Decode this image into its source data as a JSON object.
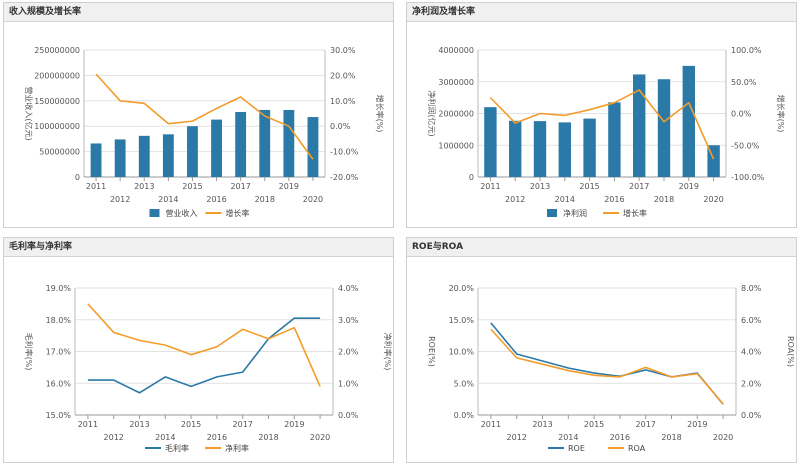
{
  "chart_data": [
    {
      "type": "bar+line",
      "title": "收入规模及增长率",
      "ylabel_left": "营业收入(亿元)",
      "ylabel_right": "增长率(%)",
      "categories": [
        "2011",
        "2012",
        "2013",
        "2014",
        "2015",
        "2016",
        "2017",
        "2018",
        "2019",
        "2020"
      ],
      "left_ticks": [
        "0",
        "50000000",
        "100000000",
        "150000000",
        "200000000",
        "250000000"
      ],
      "left_range": [
        0,
        250000000
      ],
      "right_ticks": [
        "-20.0%",
        "-10.0%",
        "0.0%",
        "10.0%",
        "20.0%",
        "30.0%"
      ],
      "right_range": [
        -20,
        30
      ],
      "series": [
        {
          "name": "营业收入",
          "kind": "bar",
          "axis": "left",
          "color": "#2b79a6",
          "values": [
            66000000,
            74000000,
            81000000,
            84000000,
            100000000,
            113000000,
            128000000,
            132000000,
            132000000,
            118000000
          ]
        },
        {
          "name": "增长率",
          "kind": "line",
          "axis": "right",
          "color": "#f39c2a",
          "values": [
            20.5,
            10.0,
            9.0,
            1.0,
            2.0,
            7.0,
            11.5,
            4.0,
            0.0,
            -13.0
          ]
        }
      ],
      "legend": [
        "营业收入",
        "增长率"
      ]
    },
    {
      "type": "bar+line",
      "title": "净利润及增长率",
      "ylabel_left": "净利润(亿元)",
      "ylabel_right": "增长率(%)",
      "categories": [
        "2011",
        "2012",
        "2013",
        "2014",
        "2015",
        "2016",
        "2017",
        "2018",
        "2019",
        "2020"
      ],
      "left_ticks": [
        "0",
        "1000000",
        "2000000",
        "3000000",
        "4000000"
      ],
      "left_range": [
        0,
        4000000
      ],
      "right_ticks": [
        "-100.0%",
        "-50.0%",
        "0.0%",
        "50.0%",
        "100.0%"
      ],
      "right_range": [
        -100,
        100
      ],
      "series": [
        {
          "name": "净利润",
          "kind": "bar",
          "axis": "left",
          "color": "#2b79a6",
          "values": [
            2200000,
            1770000,
            1760000,
            1720000,
            1840000,
            2350000,
            3230000,
            3080000,
            3500000,
            1000000
          ]
        },
        {
          "name": "增长率",
          "kind": "line",
          "axis": "right",
          "color": "#f39c2a",
          "values": [
            25,
            -15,
            0,
            -3,
            6,
            17,
            37,
            -13,
            17,
            -72
          ]
        }
      ],
      "legend": [
        "净利润",
        "增长率"
      ]
    },
    {
      "type": "line",
      "title": "毛利率与净利率",
      "ylabel_left": "毛利率(%)",
      "ylabel_right": "净利率(%)",
      "categories": [
        "2011",
        "2012",
        "2013",
        "2014",
        "2015",
        "2016",
        "2017",
        "2018",
        "2019",
        "2020"
      ],
      "left_ticks": [
        "15.0%",
        "16.0%",
        "17.0%",
        "18.0%",
        "19.0%"
      ],
      "left_range": [
        15,
        19
      ],
      "right_ticks": [
        "0.0%",
        "1.0%",
        "2.0%",
        "3.0%",
        "4.0%"
      ],
      "right_range": [
        0,
        4
      ],
      "series": [
        {
          "name": "毛利率",
          "kind": "line",
          "axis": "left",
          "color": "#2b79a6",
          "values": [
            16.1,
            16.1,
            15.7,
            16.2,
            15.9,
            16.2,
            16.35,
            17.4,
            18.05,
            18.05
          ]
        },
        {
          "name": "净利率",
          "kind": "line",
          "axis": "right",
          "color": "#f39c2a",
          "values": [
            3.5,
            2.6,
            2.35,
            2.2,
            1.9,
            2.15,
            2.7,
            2.4,
            2.75,
            0.9
          ]
        }
      ],
      "legend": [
        "毛利率",
        "净利率"
      ]
    },
    {
      "type": "line",
      "title": "ROE与ROA",
      "ylabel_left": "ROE(%)",
      "ylabel_right": "ROA(%)",
      "categories": [
        "2011",
        "2012",
        "2013",
        "2014",
        "2015",
        "2016",
        "2017",
        "2018",
        "2019",
        "2020"
      ],
      "left_ticks": [
        "0.0%",
        "5.0%",
        "10.0%",
        "15.0%",
        "20.0%"
      ],
      "left_range": [
        0,
        20
      ],
      "right_ticks": [
        "0.0%",
        "2.0%",
        "4.0%",
        "6.0%",
        "8.0%"
      ],
      "right_range": [
        0,
        8
      ],
      "series": [
        {
          "name": "ROE",
          "kind": "line",
          "axis": "left",
          "color": "#2b79a6",
          "values": [
            14.5,
            9.6,
            8.5,
            7.4,
            6.6,
            6.1,
            7.1,
            6.0,
            6.6,
            1.7
          ]
        },
        {
          "name": "ROA",
          "kind": "line",
          "axis": "right",
          "color": "#f39c2a",
          "values": [
            5.4,
            3.6,
            3.2,
            2.8,
            2.5,
            2.4,
            3.0,
            2.4,
            2.6,
            0.7
          ]
        }
      ],
      "legend": [
        "ROE",
        "ROA"
      ]
    }
  ]
}
